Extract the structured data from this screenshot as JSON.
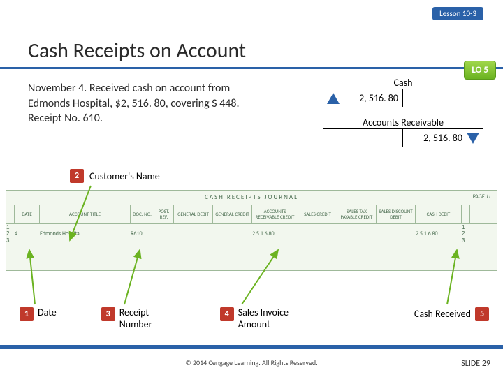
{
  "lesson_badge": "Lesson 10-3",
  "title": "Cash Receipts on Account",
  "lo_badge": "LO 5",
  "narrative": "November 4. Received cash on account from Edmonds Hospital, $2, 516. 80, covering S 448. Receipt No. 610.",
  "t_accounts": {
    "cash": {
      "label": "Cash",
      "debit": "2, 516. 80"
    },
    "ar": {
      "label": "Accounts Receivable",
      "credit": "2, 516. 80"
    }
  },
  "callouts": {
    "c1": {
      "num": "1",
      "label": "Date"
    },
    "c2": {
      "num": "2",
      "label": "Customer's Name"
    },
    "c3": {
      "num": "3",
      "label": "Receipt Number"
    },
    "c4": {
      "num": "4",
      "label": "Sales Invoice Amount"
    },
    "c5": {
      "num": "5",
      "label": "Cash Received"
    }
  },
  "journal": {
    "title": "CASH RECEIPTS JOURNAL",
    "page_label": "PAGE",
    "page_num": "11",
    "headers": [
      "",
      "DATE",
      "ACCOUNT TITLE",
      "DOC. NO.",
      "POST. REF.",
      "GENERAL DEBIT",
      "GENERAL CREDIT",
      "ACCOUNTS RECEIVABLE CREDIT",
      "SALES CREDIT",
      "SALES TAX PAYABLE CREDIT",
      "SALES DISCOUNT DEBIT",
      "CASH DEBIT",
      ""
    ],
    "rows": [
      {
        "n": "1",
        "date": "",
        "title": "",
        "doc": "",
        "post": "",
        "gd": "",
        "gc": "",
        "ar": "",
        "sc": "",
        "stp": "",
        "sdd": "",
        "cash": ""
      },
      {
        "n": "2",
        "date": "4",
        "title": "Edmonds Hospital",
        "doc": "R610",
        "post": "",
        "gd": "",
        "gc": "",
        "ar": "2 5 1 6 80",
        "sc": "",
        "stp": "",
        "sdd": "",
        "cash": "2 5 1 6 80"
      },
      {
        "n": "3",
        "date": "",
        "title": "",
        "doc": "",
        "post": "",
        "gd": "",
        "gc": "",
        "ar": "",
        "sc": "",
        "stp": "",
        "sdd": "",
        "cash": ""
      }
    ]
  },
  "colors": {
    "accent": "#2a61a8",
    "numbox": "#c0392b",
    "lo_grad_top": "#9fd64a",
    "lo_grad_bot": "#6bb321",
    "journal_bg": "#f2f7ee",
    "journal_border": "#9fb99a",
    "arrow_green": "#6bb321"
  },
  "footer": {
    "copyright": "© 2014 Cengage Learning. All Rights Reserved.",
    "slide": "SLIDE 29"
  }
}
